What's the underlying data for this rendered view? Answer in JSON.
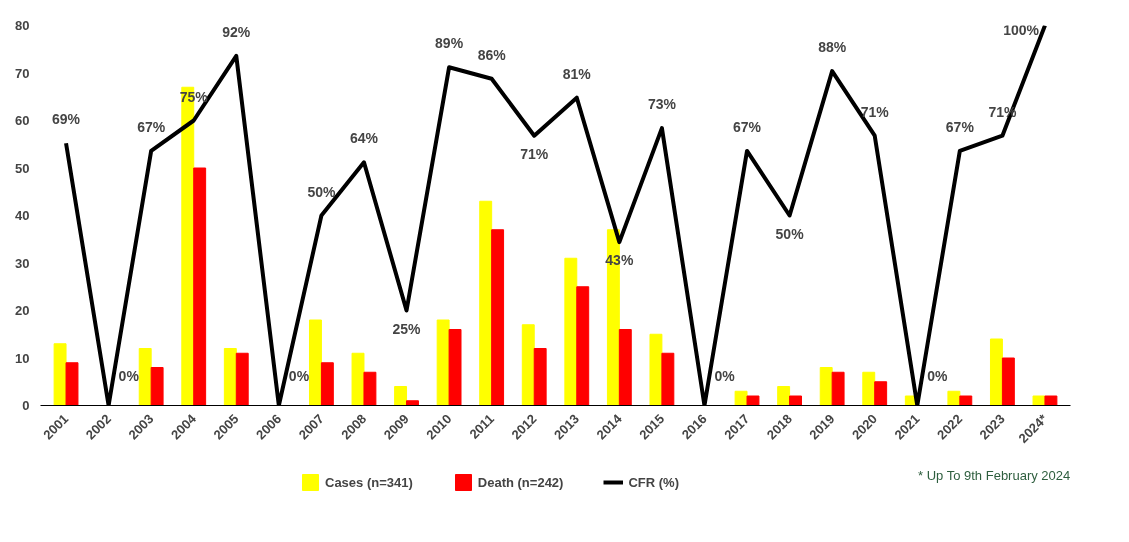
{
  "chart_data": {
    "type": "bar",
    "categories": [
      "2001",
      "2002",
      "2003",
      "2004",
      "2005",
      "2006",
      "2007",
      "2008",
      "2009",
      "2010",
      "2011",
      "2012",
      "2013",
      "2014",
      "2015",
      "2016",
      "2017",
      "2018",
      "2019",
      "2020",
      "2021",
      "2022",
      "2023",
      "2024*"
    ],
    "series": [
      {
        "name": "Cases (n=341)",
        "color": "#ffff00",
        "values": [
          13,
          0,
          12,
          67,
          12,
          0,
          18,
          11,
          4,
          18,
          43,
          17,
          31,
          37,
          15,
          0,
          3,
          4,
          8,
          7,
          2,
          3,
          14,
          2
        ]
      },
      {
        "name": "Death (n=242)",
        "color": "#ff0000",
        "values": [
          9,
          0,
          8,
          50,
          11,
          0,
          9,
          7,
          1,
          16,
          37,
          12,
          25,
          16,
          11,
          0,
          2,
          2,
          7,
          5,
          0,
          2,
          10,
          2
        ]
      },
      {
        "name": "CFR (%)",
        "type": "line",
        "axis": "y2",
        "color": "#000000",
        "values": [
          69,
          0,
          67,
          75,
          92,
          0,
          50,
          64,
          25,
          89,
          86,
          71,
          81,
          43,
          73,
          0,
          67,
          50,
          88,
          71,
          0,
          67,
          71,
          100
        ],
        "value_labels": [
          "69%",
          "0%",
          "67%",
          "75%",
          "92%",
          "0%",
          "50%",
          "64%",
          "25%",
          "89%",
          "86%",
          "71%",
          "81%",
          "43%",
          "73%",
          "0%",
          "67%",
          "50%",
          "88%",
          "71%",
          "0%",
          "67%",
          "71%",
          "100%"
        ]
      }
    ],
    "ylim": [
      0,
      80
    ],
    "yticks": [
      0,
      10,
      20,
      30,
      40,
      50,
      60,
      70,
      80
    ],
    "legend": "bottom",
    "annotations": [
      "* Up To 9th February 2024"
    ]
  }
}
